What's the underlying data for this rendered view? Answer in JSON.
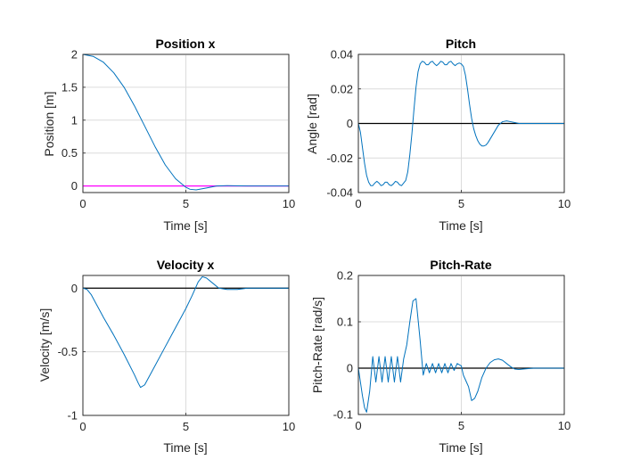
{
  "colors": {
    "response": "#0072BD",
    "reference": "#000000",
    "target": "#FF00FF",
    "grid": "#dcdcdc",
    "axes": "#262626"
  },
  "chart_data": [
    {
      "type": "line",
      "title": "Position x",
      "xlabel": "Time [s]",
      "ylabel": "Position [m]",
      "xlim": [
        0,
        10
      ],
      "ylim": [
        -0.1,
        2
      ],
      "xticks": [
        0,
        5,
        10
      ],
      "yticks": [
        0,
        0.5,
        1,
        1.5,
        2
      ],
      "grid": true,
      "series": [
        {
          "color": "#0072BD",
          "x": [
            0,
            0.5,
            1,
            1.5,
            2,
            2.5,
            3,
            3.5,
            4,
            4.5,
            5,
            5.2,
            5.5,
            6,
            6.5,
            7,
            8,
            9,
            10
          ],
          "y": [
            2,
            1.97,
            1.88,
            1.72,
            1.5,
            1.22,
            0.91,
            0.6,
            0.32,
            0.11,
            -0.02,
            -0.05,
            -0.06,
            -0.03,
            0,
            0.005,
            0,
            0,
            0
          ]
        },
        {
          "color": "#FF00FF",
          "x": [
            0,
            10
          ],
          "y": [
            0,
            0
          ]
        }
      ]
    },
    {
      "type": "line",
      "title": "Pitch",
      "xlabel": "Time [s]",
      "ylabel": "Angle [rad]",
      "xlim": [
        0,
        10
      ],
      "ylim": [
        -0.04,
        0.04
      ],
      "xticks": [
        0,
        5,
        10
      ],
      "yticks": [
        -0.04,
        -0.02,
        0,
        0.02,
        0.04
      ],
      "grid": true,
      "series": [
        {
          "color": "#0072BD",
          "x": [
            0,
            0.1,
            0.2,
            0.3,
            0.4,
            0.5,
            0.6,
            0.7,
            0.8,
            0.9,
            1,
            1.1,
            1.2,
            1.3,
            1.4,
            1.5,
            1.6,
            1.7,
            1.8,
            1.9,
            2,
            2.1,
            2.2,
            2.3,
            2.4,
            2.5,
            2.6,
            2.7,
            2.8,
            2.9,
            3,
            3.1,
            3.2,
            3.3,
            3.4,
            3.5,
            3.6,
            3.7,
            3.8,
            3.9,
            4,
            4.1,
            4.2,
            4.3,
            4.4,
            4.5,
            4.6,
            4.7,
            4.8,
            4.9,
            5,
            5.1,
            5.2,
            5.3,
            5.4,
            5.5,
            5.6,
            5.7,
            5.8,
            5.9,
            6,
            6.1,
            6.2,
            6.3,
            6.4,
            6.5,
            6.6,
            6.7,
            6.8,
            6.9,
            7,
            7.2,
            7.4,
            7.6,
            7.8,
            8,
            8.2,
            8.5,
            9,
            10
          ],
          "y": [
            0,
            -0.005,
            -0.014,
            -0.023,
            -0.03,
            -0.034,
            -0.036,
            -0.036,
            -0.0345,
            -0.0335,
            -0.0345,
            -0.036,
            -0.0355,
            -0.034,
            -0.034,
            -0.0355,
            -0.036,
            -0.035,
            -0.0335,
            -0.034,
            -0.0355,
            -0.036,
            -0.0345,
            -0.033,
            -0.028,
            -0.018,
            -0.006,
            0.008,
            0.021,
            0.03,
            0.0345,
            0.036,
            0.0355,
            0.034,
            0.034,
            0.0355,
            0.036,
            0.0345,
            0.0335,
            0.0345,
            0.036,
            0.0355,
            0.034,
            0.034,
            0.0355,
            0.036,
            0.0345,
            0.0335,
            0.0345,
            0.035,
            0.0345,
            0.033,
            0.028,
            0.02,
            0.011,
            0.003,
            -0.003,
            -0.007,
            -0.01,
            -0.012,
            -0.013,
            -0.013,
            -0.0125,
            -0.011,
            -0.009,
            -0.007,
            -0.005,
            -0.003,
            -0.001,
            0,
            0.001,
            0.0015,
            0.001,
            0.0005,
            0,
            0,
            0,
            0,
            0,
            0
          ]
        },
        {
          "color": "#000000",
          "x": [
            0,
            10
          ],
          "y": [
            0,
            0
          ]
        }
      ]
    },
    {
      "type": "line",
      "title": "Velocity x",
      "xlabel": "Time [s]",
      "ylabel": "Velocity [m/s]",
      "xlim": [
        0,
        10
      ],
      "ylim": [
        -1,
        0.1
      ],
      "xticks": [
        0,
        5,
        10
      ],
      "yticks": [
        -1,
        -0.5,
        0
      ],
      "grid": true,
      "series": [
        {
          "color": "#0072BD",
          "x": [
            0,
            0.2,
            0.4,
            0.6,
            0.8,
            1,
            1.5,
            2,
            2.5,
            2.7,
            2.8,
            3,
            3.5,
            4,
            4.5,
            5,
            5.3,
            5.6,
            5.8,
            6,
            6.3,
            6.6,
            7,
            7.5,
            8,
            9,
            10
          ],
          "y": [
            0,
            -0.01,
            -0.05,
            -0.11,
            -0.17,
            -0.23,
            -0.37,
            -0.52,
            -0.68,
            -0.75,
            -0.78,
            -0.76,
            -0.61,
            -0.46,
            -0.31,
            -0.16,
            -0.06,
            0.05,
            0.09,
            0.08,
            0.04,
            0,
            -0.01,
            -0.01,
            0,
            0,
            0
          ]
        },
        {
          "color": "#000000",
          "x": [
            0,
            10
          ],
          "y": [
            0,
            0
          ]
        }
      ]
    },
    {
      "type": "line",
      "title": "Pitch-Rate",
      "xlabel": "Time [s]",
      "ylabel": "Pitch-Rate [rad/s]",
      "xlim": [
        0,
        10
      ],
      "ylim": [
        -0.1,
        0.2
      ],
      "xticks": [
        0,
        5,
        10
      ],
      "yticks": [
        -0.1,
        0,
        0.1,
        0.2
      ],
      "grid": true,
      "series": [
        {
          "color": "#0072BD",
          "x": [
            0,
            0.1,
            0.2,
            0.3,
            0.4,
            0.55,
            0.7,
            0.85,
            1,
            1.15,
            1.3,
            1.45,
            1.6,
            1.75,
            1.9,
            2.05,
            2.2,
            2.35,
            2.5,
            2.65,
            2.8,
            3,
            3.15,
            3.3,
            3.45,
            3.6,
            3.75,
            3.9,
            4.05,
            4.2,
            4.35,
            4.5,
            4.65,
            4.8,
            5,
            5.1,
            5.2,
            5.35,
            5.5,
            5.65,
            5.8,
            6,
            6.2,
            6.4,
            6.6,
            6.8,
            7,
            7.2,
            7.4,
            7.6,
            7.8,
            8,
            8.5,
            9,
            10
          ],
          "y": [
            0,
            -0.03,
            -0.06,
            -0.085,
            -0.095,
            -0.05,
            0.025,
            -0.03,
            0.025,
            -0.03,
            0.025,
            -0.03,
            0.025,
            -0.03,
            0.025,
            -0.03,
            0.02,
            0.05,
            0.1,
            0.145,
            0.15,
            0.06,
            -0.015,
            0.01,
            -0.01,
            0.01,
            -0.01,
            0.01,
            -0.01,
            0.01,
            -0.01,
            0.01,
            -0.005,
            0.01,
            0.005,
            -0.015,
            -0.025,
            -0.04,
            -0.07,
            -0.065,
            -0.05,
            -0.02,
            0,
            0.012,
            0.018,
            0.02,
            0.017,
            0.01,
            0.003,
            -0.002,
            -0.003,
            -0.002,
            0,
            0,
            0
          ]
        },
        {
          "color": "#000000",
          "x": [
            0,
            10
          ],
          "y": [
            0,
            0
          ]
        }
      ]
    }
  ]
}
